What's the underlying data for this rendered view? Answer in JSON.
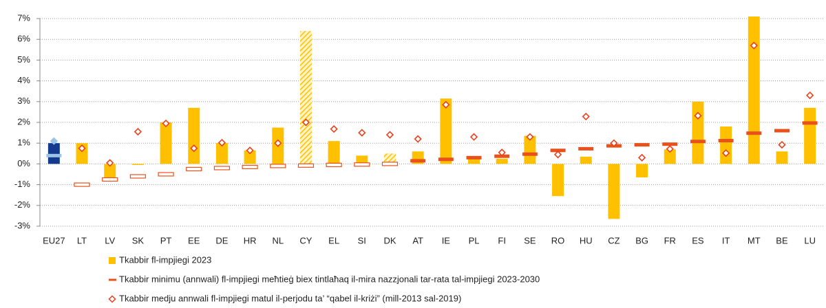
{
  "chart_data": {
    "type": "bar",
    "categories": [
      "EU27",
      "LT",
      "LV",
      "SK",
      "PT",
      "EE",
      "DE",
      "HR",
      "NL",
      "CY",
      "EL",
      "SI",
      "DK",
      "AT",
      "IE",
      "PL",
      "FI",
      "SE",
      "RO",
      "HU",
      "CZ",
      "BG",
      "FR",
      "ES",
      "IT",
      "MT",
      "BE",
      "LU"
    ],
    "ylim": [
      -3,
      7
    ],
    "yticks": [
      {
        "value": -3,
        "label": "-3%"
      },
      {
        "value": -2,
        "label": "-2%"
      },
      {
        "value": -1,
        "label": "-1%"
      },
      {
        "value": 0,
        "label": "0%"
      },
      {
        "value": 1,
        "label": "1%"
      },
      {
        "value": 2,
        "label": "2%"
      },
      {
        "value": 3,
        "label": "3%"
      },
      {
        "value": 4,
        "label": "4%"
      },
      {
        "value": 5,
        "label": "5%"
      },
      {
        "value": 6,
        "label": "6%"
      },
      {
        "value": 7,
        "label": "7%"
      }
    ],
    "grid": true,
    "legend": "bottom",
    "highlight_index": 0,
    "hatched_indices": [
      9,
      12
    ],
    "series": [
      {
        "name": "Tkabbir fl-impjiegi 2023",
        "kind": "bar",
        "color": "#ffc000",
        "highlight_color": "#133a8c",
        "values": [
          1.0,
          1.0,
          -0.7,
          -0.05,
          2.0,
          2.7,
          1.0,
          0.65,
          1.75,
          6.4,
          1.1,
          0.4,
          0.5,
          0.6,
          3.15,
          0.35,
          0.25,
          1.35,
          -1.55,
          0.35,
          -2.65,
          -0.65,
          0.7,
          3.0,
          1.8,
          7.1,
          0.6,
          2.7
        ]
      },
      {
        "name": "Tkabbir minimu (annwali) fl-impjiegi meħtieġ biex tintlaħaq il-mira nazzjonali tar-rata tal-impjiegi 2023-2030",
        "kind": "dash",
        "color": "#e8501c",
        "highlight_color": "#9dc3e6",
        "values": [
          0.4,
          -1.0,
          -0.75,
          -0.6,
          -0.5,
          -0.25,
          -0.2,
          -0.15,
          -0.1,
          -0.08,
          -0.05,
          -0.03,
          0.0,
          0.15,
          0.22,
          0.3,
          0.37,
          0.47,
          0.65,
          0.73,
          0.87,
          0.92,
          0.95,
          1.08,
          1.12,
          1.48,
          1.6,
          1.97
        ]
      },
      {
        "name": "Tkabbir medju annwali fl-impjiegi matul il-perjodu ta’ “qabel il-kriżi” (mill-2013 sal-2019)",
        "kind": "diamond",
        "color": "#e8401c",
        "highlight_color": "#9dc3e6",
        "values": [
          1.1,
          0.75,
          0.05,
          1.55,
          1.95,
          0.75,
          1.02,
          0.65,
          1.0,
          2.0,
          1.68,
          1.5,
          1.4,
          1.2,
          2.85,
          1.3,
          0.55,
          1.3,
          0.45,
          2.28,
          1.0,
          0.3,
          0.72,
          2.32,
          0.52,
          5.7,
          0.92,
          3.3
        ]
      }
    ]
  }
}
